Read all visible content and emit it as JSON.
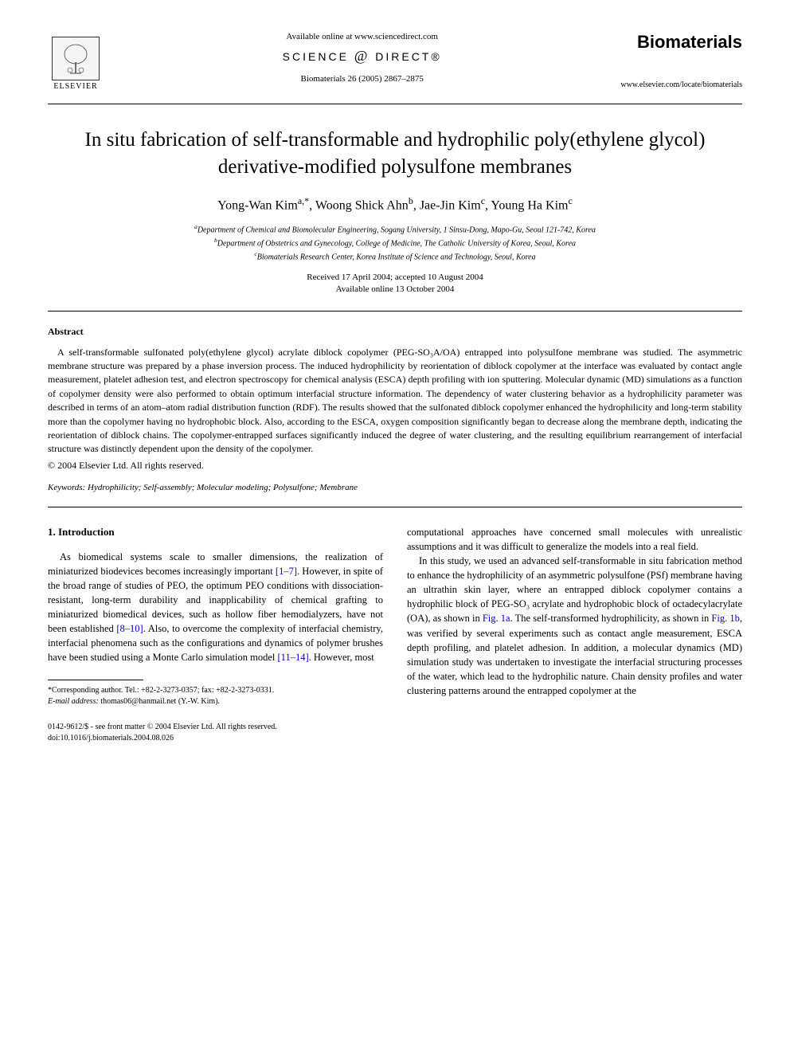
{
  "header": {
    "available_online": "Available online at www.sciencedirect.com",
    "science_direct_left": "SCIENCE",
    "science_direct_right": "DIRECT®",
    "citation": "Biomaterials 26 (2005) 2867–2875",
    "elsevier_label": "ELSEVIER",
    "journal_name": "Biomaterials",
    "journal_url": "www.elsevier.com/locate/biomaterials"
  },
  "title": "In situ fabrication of self-transformable and hydrophilic poly(ethylene glycol) derivative-modified polysulfone membranes",
  "authors_html": "Yong-Wan Kim<sup>a,*</sup>, Woong Shick Ahn<sup>b</sup>, Jae-Jin Kim<sup>c</sup>, Young Ha Kim<sup>c</sup>",
  "affiliations": {
    "a": "Department of Chemical and Biomolecular Engineering, Sogang University, 1 Sinsu-Dong, Mapo-Gu, Seoul 121-742, Korea",
    "b": "Department of Obstetrics and Gynecology, College of Medicine, The Catholic University of Korea, Seoul, Korea",
    "c": "Biomaterials Research Center, Korea Institute of Science and Technology, Seoul, Korea"
  },
  "dates": {
    "received_accepted": "Received 17 April 2004; accepted 10 August 2004",
    "online": "Available online 13 October 2004"
  },
  "abstract": {
    "heading": "Abstract",
    "body": "A self-transformable sulfonated poly(ethylene glycol) acrylate diblock copolymer (PEG-SO₃A/OA) entrapped into polysulfone membrane was studied. The asymmetric membrane structure was prepared by a phase inversion process. The induced hydrophilicity by reorientation of diblock copolymer at the interface was evaluated by contact angle measurement, platelet adhesion test, and electron spectroscopy for chemical analysis (ESCA) depth profiling with ion sputtering. Molecular dynamic (MD) simulations as a function of copolymer density were also performed to obtain optimum interfacial structure information. The dependency of water clustering behavior as a hydrophilicity parameter was described in terms of an atom–atom radial distribution function (RDF). The results showed that the sulfonated diblock copolymer enhanced the hydrophilicity and long-term stability more than the copolymer having no hydrophobic block. Also, according to the ESCA, oxygen composition significantly began to decrease along the membrane depth, indicating the reorientation of diblock chains. The copolymer-entrapped surfaces significantly induced the degree of water clustering, and the resulting equilibrium rearrangement of interfacial structure was distinctly dependent upon the density of the copolymer.",
    "copyright": "© 2004 Elsevier Ltd. All rights reserved."
  },
  "keywords": {
    "label": "Keywords:",
    "list": "Hydrophilicity; Self-assembly; Molecular modeling; Polysulfone; Membrane"
  },
  "intro": {
    "heading": "1. Introduction",
    "p1_a": "As biomedical systems scale to smaller dimensions, the realization of miniaturized biodevices becomes increasingly important ",
    "p1_ref1": "[1–7]",
    "p1_b": ". However, in spite of the broad range of studies of PEO, the optimum PEO conditions with dissociation-resistant, long-term durability and inapplicability of chemical grafting to miniaturized biomedical devices, such as hollow fiber hemodialyzers, have not been established ",
    "p1_ref2": "[8–10]",
    "p1_c": ". Also, to overcome the complexity of interfacial chemistry, interfacial phenomena such as the configurations and dynamics of polymer brushes have been studied using a Monte Carlo simulation model ",
    "p1_ref3": "[11–14]",
    "p1_d": ". However, most",
    "p1_right": "computational approaches have concerned small molecules with unrealistic assumptions and it was difficult to generalize the models into a real field.",
    "p2_a": "In this study, we used an advanced self-transformable in situ fabrication method to enhance the hydrophilicity of an asymmetric polysulfone (PSf) membrane having an ultrathin skin layer, where an entrapped diblock copolymer contains a hydrophilic block of PEG-SO₃ acrylate and hydrophobic block of octadecylacrylate (OA), as shown in ",
    "p2_fig1": "Fig. 1a",
    "p2_b": ". The self-transformed hydrophilicity, as shown in ",
    "p2_fig2": "Fig. 1b",
    "p2_c": ", was verified by several experiments such as contact angle measurement, ESCA depth profiling, and platelet adhesion. In addition, a molecular dynamics (MD) simulation study was undertaken to investigate the interfacial structuring processes of the water, which lead to the hydrophilic nature. Chain density profiles and water clustering patterns around the entrapped copolymer at the"
  },
  "footnote": {
    "corresponding": "*Corresponding author. Tel.: +82-2-3273-0357; fax: +82-2-3273-0331.",
    "email_label": "E-mail address:",
    "email": "thomas06@hanmail.net (Y.-W. Kim)."
  },
  "footer": {
    "line1": "0142-9612/$ - see front matter © 2004 Elsevier Ltd. All rights reserved.",
    "line2": "doi:10.1016/j.biomaterials.2004.08.026"
  },
  "colors": {
    "text": "#000000",
    "background": "#ffffff",
    "link": "#0000cc"
  }
}
